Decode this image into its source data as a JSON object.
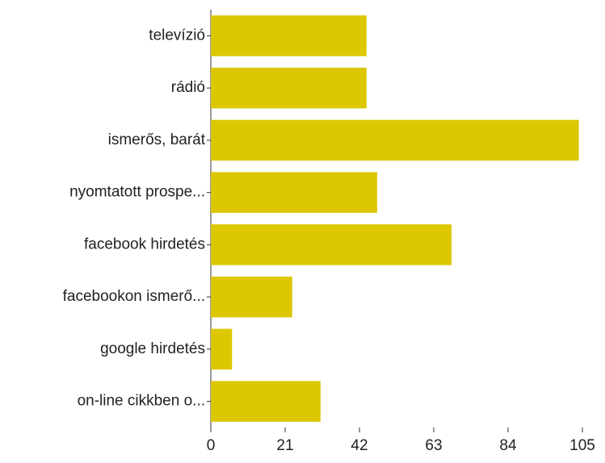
{
  "chart_data": {
    "type": "bar",
    "orientation": "horizontal",
    "categories": [
      "televízió",
      "rádió",
      "ismerős, barát",
      "nyomtatott prospe...",
      "facebook hirdetés",
      "facebookon ismerő...",
      "google hirdetés",
      "on-line cikkben o..."
    ],
    "values": [
      44,
      44,
      104,
      47,
      68,
      23,
      6,
      31
    ],
    "color": "#dcc700",
    "xlim": [
      0,
      105
    ],
    "xticks": [
      0,
      21,
      42,
      63,
      84,
      105
    ],
    "grid": false
  }
}
